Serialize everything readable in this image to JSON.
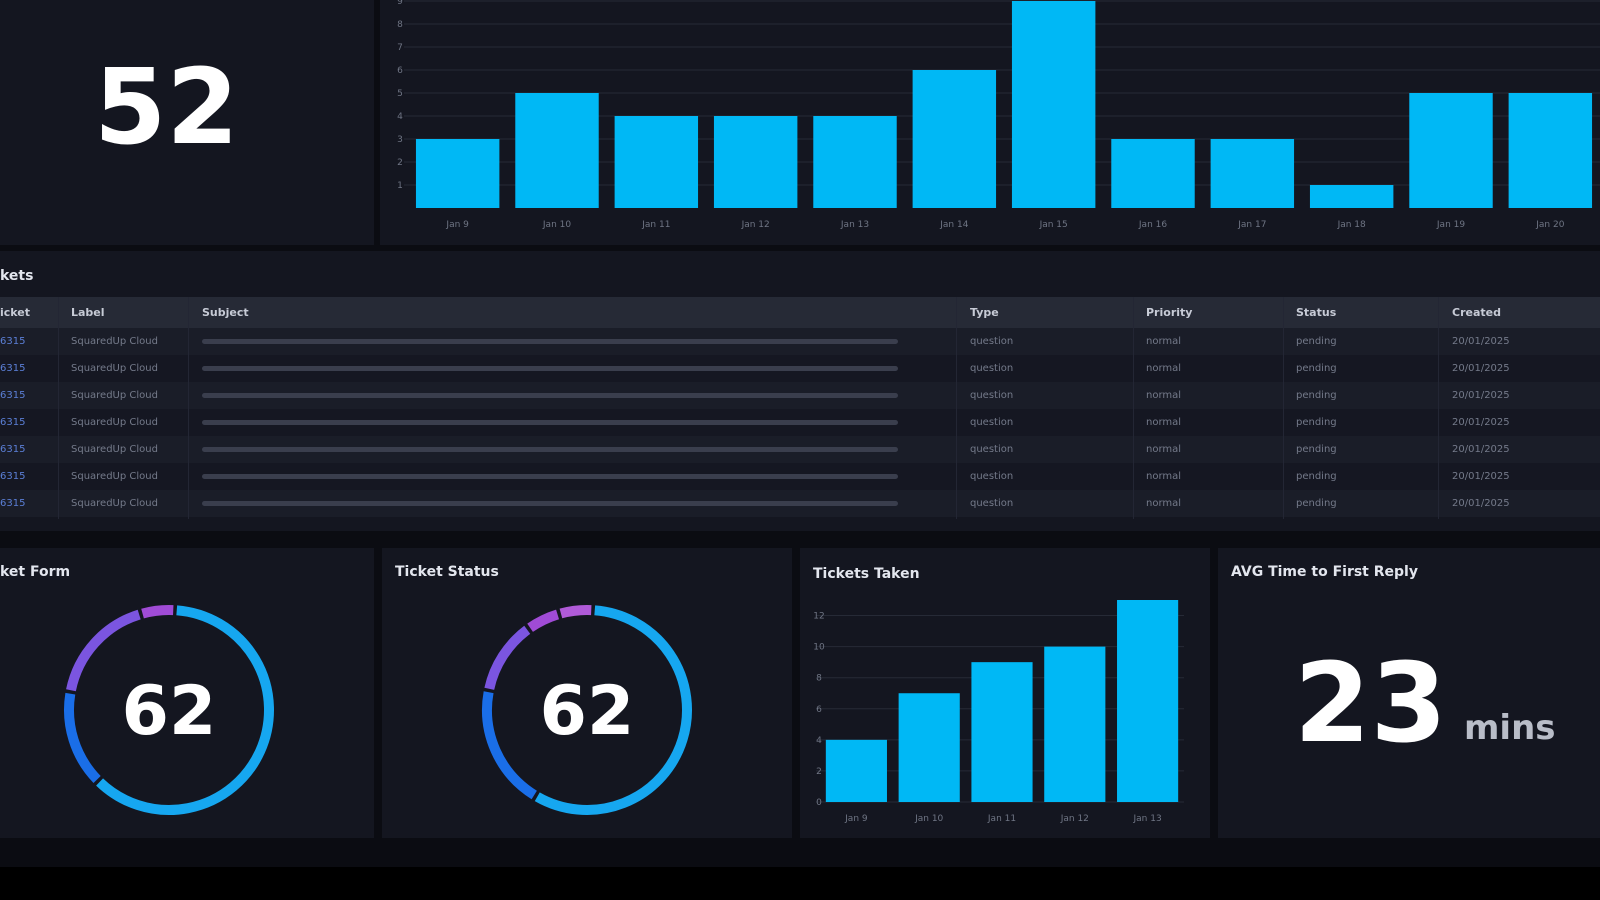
{
  "tiles": {
    "total": {
      "value": "52"
    },
    "daily_chart": {
      "y_ticks": [
        "1",
        "2",
        "3",
        "4",
        "5",
        "6",
        "7",
        "8",
        "9"
      ]
    },
    "tickets_table": {
      "title": "kets",
      "columns": [
        "icket",
        "Label",
        "Subject",
        "Type",
        "Priority",
        "Status",
        "Created"
      ],
      "rows": [
        {
          "ticket": "6315",
          "label": "SquaredUp Cloud",
          "type": "question",
          "priority": "normal",
          "status": "pending",
          "created": "20/01/2025"
        },
        {
          "ticket": "6315",
          "label": "SquaredUp Cloud",
          "type": "question",
          "priority": "normal",
          "status": "pending",
          "created": "20/01/2025"
        },
        {
          "ticket": "6315",
          "label": "SquaredUp Cloud",
          "type": "question",
          "priority": "normal",
          "status": "pending",
          "created": "20/01/2025"
        },
        {
          "ticket": "6315",
          "label": "SquaredUp Cloud",
          "type": "question",
          "priority": "normal",
          "status": "pending",
          "created": "20/01/2025"
        },
        {
          "ticket": "6315",
          "label": "SquaredUp Cloud",
          "type": "question",
          "priority": "normal",
          "status": "pending",
          "created": "20/01/2025"
        },
        {
          "ticket": "6315",
          "label": "SquaredUp Cloud",
          "type": "question",
          "priority": "normal",
          "status": "pending",
          "created": "20/01/2025"
        },
        {
          "ticket": "6315",
          "label": "SquaredUp Cloud",
          "type": "question",
          "priority": "normal",
          "status": "pending",
          "created": "20/01/2025"
        }
      ]
    },
    "ticket_form": {
      "title": "ket Form",
      "value": "62"
    },
    "ticket_status": {
      "title": "Ticket Status",
      "value": "62"
    },
    "tickets_taken": {
      "title": "Tickets Taken"
    },
    "avg_reply": {
      "title": "AVG Time to First Reply",
      "value": "23",
      "unit": "mins"
    }
  },
  "colors": {
    "bar": "#00b8f5",
    "donut_main": "#16a7f0",
    "donut_blue": "#1a6ee8",
    "donut_purple1": "#7b55e0",
    "donut_purple2": "#a04bd6"
  },
  "chart_data": [
    {
      "type": "bar",
      "categories": [
        "Jan 9",
        "Jan 10",
        "Jan 11",
        "Jan 12",
        "Jan 13",
        "Jan 14",
        "Jan 15",
        "Jan 16",
        "Jan 17",
        "Jan 18",
        "Jan 19",
        "Jan 20"
      ],
      "values": [
        3,
        5,
        4,
        4,
        4,
        6,
        9,
        3,
        3,
        1,
        5,
        5
      ],
      "ylim": [
        0,
        9
      ],
      "grid": true
    },
    {
      "type": "bar",
      "categories": [
        "Jan 9",
        "Jan 10",
        "Jan 11",
        "Jan 12",
        "Jan 13"
      ],
      "values": [
        4,
        7,
        9,
        10,
        13
      ],
      "title": "Tickets Taken",
      "y_ticks": [
        0,
        2,
        4,
        6,
        8,
        10,
        12
      ],
      "ylim": [
        0,
        13
      ],
      "grid": true
    },
    {
      "type": "pie",
      "title": "ket Form",
      "center_label": "62",
      "slices": [
        {
          "value": 56,
          "color": "#16a7f0"
        },
        {
          "value": 14,
          "color": "#1a6ee8"
        },
        {
          "value": 16,
          "color": "#7b55e0"
        },
        {
          "value": 5,
          "color": "#a04bd6"
        }
      ]
    },
    {
      "type": "pie",
      "title": "Ticket Status",
      "center_label": "62",
      "slices": [
        {
          "value": 53,
          "color": "#16a7f0"
        },
        {
          "value": 18,
          "color": "#1a6ee8"
        },
        {
          "value": 11,
          "color": "#7b55e0"
        },
        {
          "value": 5,
          "color": "#a04bd6"
        },
        {
          "value": 5,
          "color": "#b05ad8"
        }
      ]
    }
  ]
}
